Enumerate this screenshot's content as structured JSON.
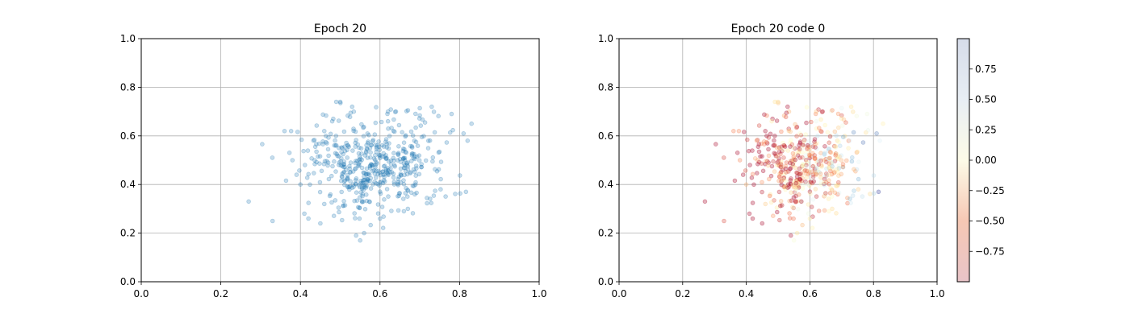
{
  "chart_data": [
    {
      "type": "scatter",
      "title": "Epoch 20",
      "xlim": [
        0,
        1
      ],
      "ylim": [
        0,
        1
      ],
      "xticks": [
        "0.0",
        "0.2",
        "0.4",
        "0.6",
        "0.8",
        "1.0"
      ],
      "yticks": [
        "0.0",
        "0.2",
        "0.4",
        "0.6",
        "0.8",
        "1.0"
      ],
      "grid": true,
      "point_color": "#1f77b4",
      "point_alpha": 0.25,
      "cloud": {
        "center": [
          0.58,
          0.48
        ],
        "spread": [
          0.09,
          0.1
        ],
        "count": 500,
        "x_range": [
          0.27,
          0.83
        ],
        "y_range": [
          0.17,
          0.74
        ]
      },
      "points": [
        [
          0.27,
          0.33
        ],
        [
          0.33,
          0.25
        ],
        [
          0.36,
          0.62
        ],
        [
          0.38,
          0.5
        ],
        [
          0.4,
          0.4
        ],
        [
          0.41,
          0.28
        ],
        [
          0.42,
          0.26
        ],
        [
          0.45,
          0.24
        ],
        [
          0.46,
          0.62
        ],
        [
          0.48,
          0.66
        ],
        [
          0.49,
          0.74
        ],
        [
          0.5,
          0.74
        ],
        [
          0.53,
          0.72
        ],
        [
          0.54,
          0.19
        ],
        [
          0.55,
          0.17
        ],
        [
          0.56,
          0.2
        ],
        [
          0.6,
          0.26
        ],
        [
          0.62,
          0.7
        ],
        [
          0.64,
          0.7
        ],
        [
          0.66,
          0.29
        ],
        [
          0.67,
          0.3
        ],
        [
          0.73,
          0.72
        ],
        [
          0.78,
          0.69
        ],
        [
          0.81,
          0.61
        ],
        [
          0.82,
          0.58
        ],
        [
          0.83,
          0.65
        ]
      ]
    },
    {
      "type": "scatter",
      "title": "Epoch 20 code 0",
      "xlim": [
        0,
        1
      ],
      "ylim": [
        0,
        1
      ],
      "xticks": [
        "0.0",
        "0.2",
        "0.4",
        "0.6",
        "0.8",
        "1.0"
      ],
      "yticks": [
        "0.0",
        "0.2",
        "0.4",
        "0.6",
        "0.8",
        "1.0"
      ],
      "grid": true,
      "point_alpha": 0.3,
      "colormap": "RdYlBu",
      "colorbar": {
        "range": [
          -1,
          1
        ],
        "ticks": [
          0.75,
          0.5,
          0.25,
          0.0,
          -0.25,
          -0.5,
          -0.75
        ],
        "tick_labels": [
          "0.75",
          "0.50",
          "0.25",
          "0.00",
          "−0.25",
          "−0.50",
          "−0.75"
        ],
        "colors": {
          "top": "#d6dcea",
          "upper": "#e8eef4",
          "middle": "#fdfbe8",
          "lower": "#f6c8b4",
          "bottom": "#e8c4c8"
        }
      },
      "cloud": {
        "center": [
          0.58,
          0.48
        ],
        "spread": [
          0.09,
          0.1
        ],
        "count": 500,
        "x_range": [
          0.27,
          0.83
        ],
        "y_range": [
          0.17,
          0.74
        ]
      }
    }
  ]
}
